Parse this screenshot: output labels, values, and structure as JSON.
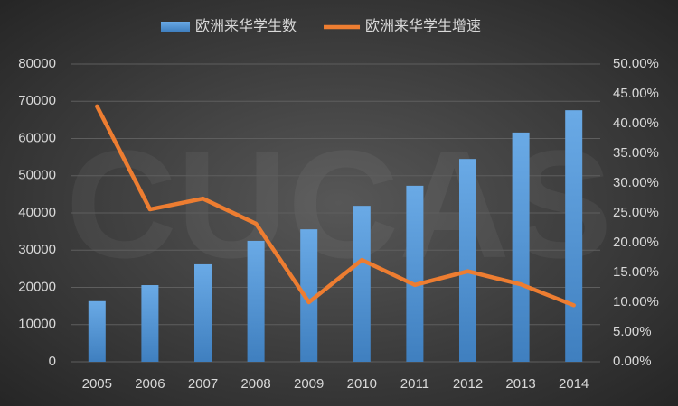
{
  "chart_data": {
    "type": "bar-line",
    "watermark": "CUCAS",
    "categories": [
      "2005",
      "2006",
      "2007",
      "2008",
      "2009",
      "2010",
      "2011",
      "2012",
      "2013",
      "2014"
    ],
    "series": [
      {
        "name": "欧洲来华学生数",
        "type": "bar",
        "color": "#5b9bd5",
        "values": [
          16300,
          20600,
          26200,
          32500,
          35600,
          41900,
          47300,
          54500,
          61600,
          67600
        ]
      },
      {
        "name": "欧洲来华学生增速",
        "type": "line",
        "color": "#ed7d31",
        "axis": "y2",
        "values": [
          42.9,
          25.6,
          27.4,
          23.2,
          10.0,
          17.1,
          12.9,
          15.2,
          13.0,
          9.5
        ]
      }
    ],
    "ylim": [
      0,
      80000
    ],
    "yticks": [
      0,
      10000,
      20000,
      30000,
      40000,
      50000,
      60000,
      70000,
      80000
    ],
    "y2lim": [
      0,
      50
    ],
    "y2ticks": [
      {
        "value": 0,
        "label": "0.00%"
      },
      {
        "value": 5,
        "label": "5.00%"
      },
      {
        "value": 10,
        "label": "10.00%"
      },
      {
        "value": 15,
        "label": "15.00%"
      },
      {
        "value": 20,
        "label": "20.00%"
      },
      {
        "value": 25,
        "label": "25.00%"
      },
      {
        "value": 30,
        "label": "30.00%"
      },
      {
        "value": 35,
        "label": "35.00%"
      },
      {
        "value": 40,
        "label": "40.00%"
      },
      {
        "value": 45,
        "label": "45.00%"
      },
      {
        "value": 50,
        "label": "50.00%"
      }
    ],
    "grid": true,
    "legend": "top"
  }
}
